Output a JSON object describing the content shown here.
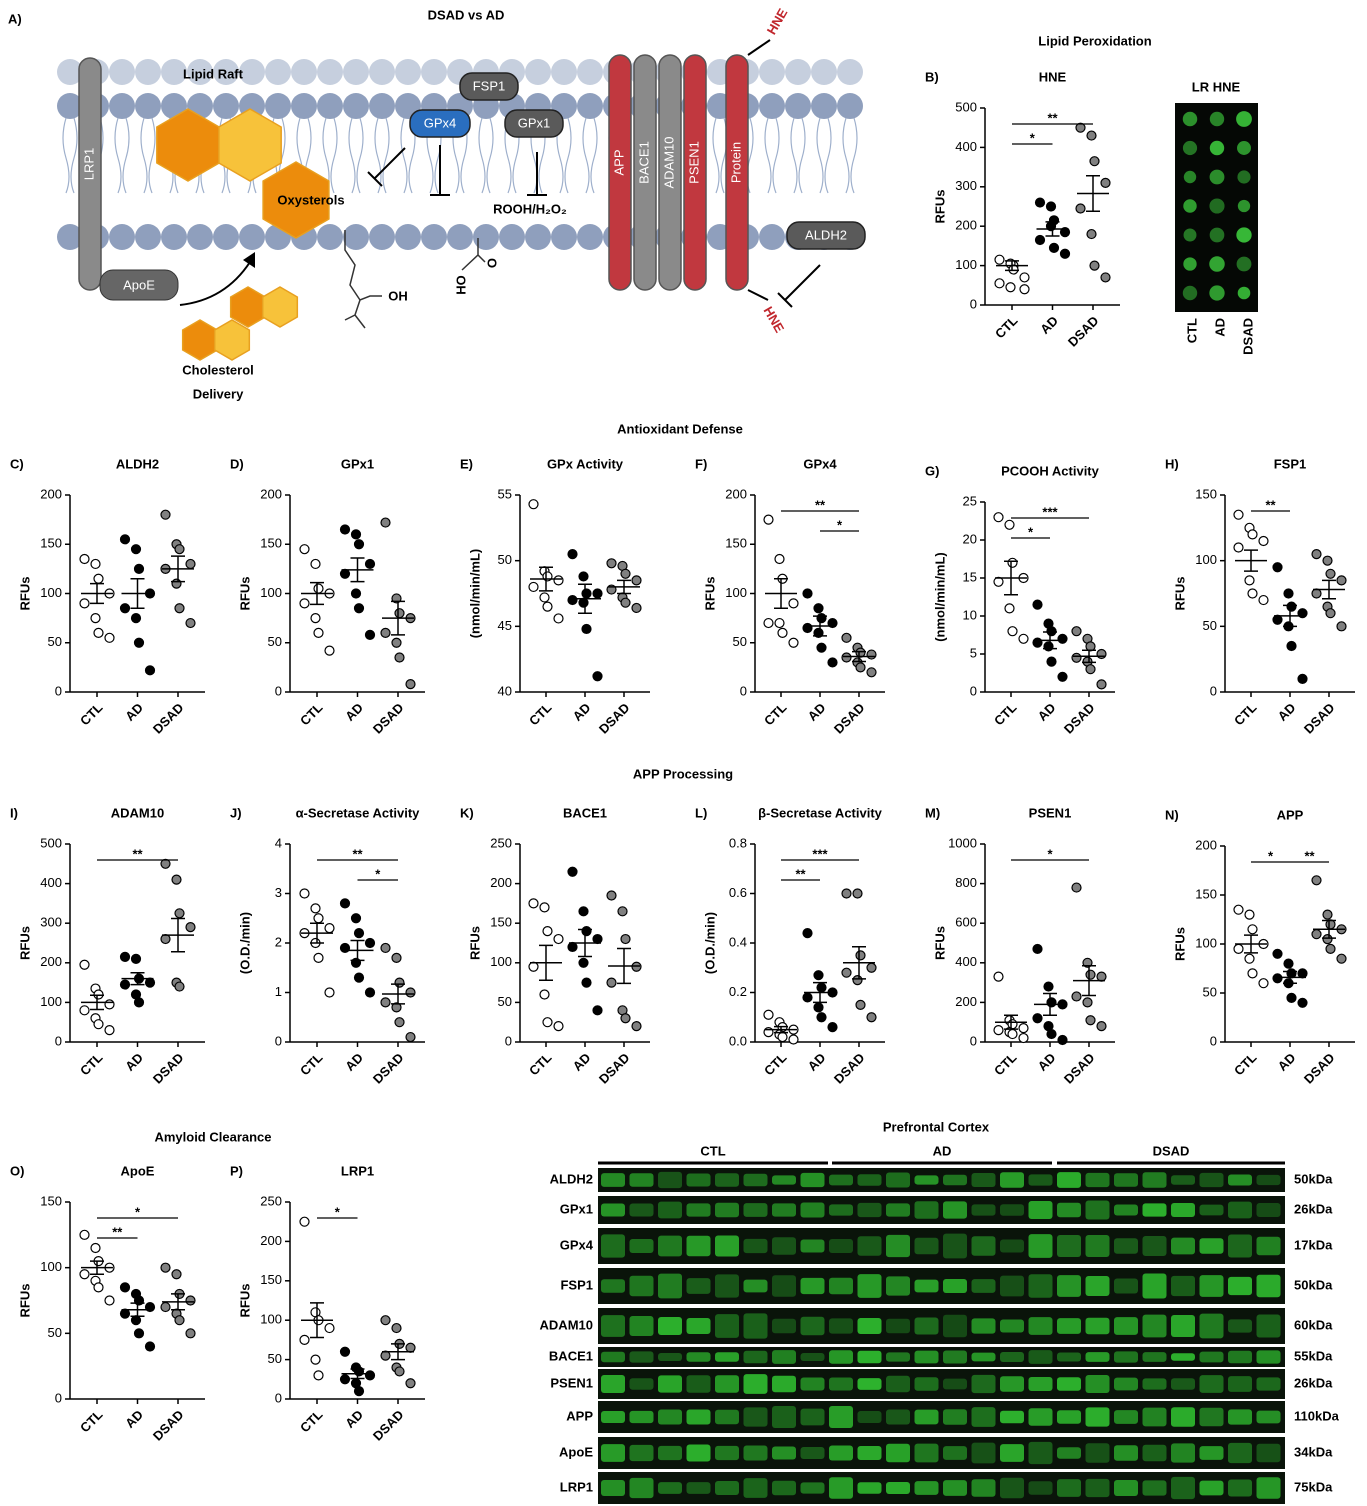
{
  "diagram": {
    "panel": "A)",
    "title": "DSAD vs AD",
    "lipid_raft": "Lipid Raft",
    "lrp1": "LRP1",
    "apoe": "ApoE",
    "oxysterols": "Oxysterols",
    "fsp1": "FSP1",
    "gpx4": "GPx4",
    "gpx1": "GPx1",
    "rooh": "ROOH/H₂O₂",
    "oh": "OH",
    "ho": "HO",
    "o": "O",
    "delivery": [
      "Cholesterol",
      "Delivery"
    ],
    "app": "APP",
    "bace1": "BACE1",
    "adam10": "ADAM10",
    "psen1": "PSEN1",
    "protein": "Protein",
    "hne": [
      "HNE",
      "HNE"
    ],
    "aldh2": "ALDH2"
  },
  "sections": [
    "Lipid Peroxidation",
    "Antioxidant Defense",
    "APP Processing",
    "Amyloid Clearance"
  ],
  "dot_blot": {
    "title": "LR HNE",
    "lanes": [
      "CTL",
      "AD",
      "DSAD"
    ]
  },
  "chart_data": [
    {
      "type": "dot",
      "panel": "B)",
      "title": "HNE",
      "ylabel": "RFUs",
      "categories": [
        "CTL",
        "AD",
        "DSAD"
      ],
      "colors": [
        "#ffffff",
        "#000000",
        "#808080"
      ],
      "values": [
        [
          55,
          45,
          100,
          70,
          115,
          105,
          90,
          40
        ],
        [
          260,
          250,
          215,
          185,
          165,
          200,
          145,
          130
        ],
        [
          450,
          430,
          365,
          310,
          245,
          180,
          100,
          70
        ]
      ],
      "means": [
        100,
        193,
        283
      ],
      "sems": [
        12,
        18,
        45
      ],
      "ylim": [
        0,
        500
      ],
      "yticks": [
        0,
        100,
        200,
        300,
        400,
        500
      ],
      "significance": [
        {
          "groups": [
            "CTL",
            "DSAD"
          ],
          "label": "**"
        },
        {
          "groups": [
            "CTL",
            "AD"
          ],
          "label": "*"
        }
      ]
    },
    {
      "type": "dot",
      "panel": "C)",
      "title": "ALDH2",
      "ylabel": "RFUs",
      "categories": [
        "CTL",
        "AD",
        "DSAD"
      ],
      "colors": [
        "#ffffff",
        "#000000",
        "#808080"
      ],
      "values": [
        [
          135,
          130,
          115,
          100,
          90,
          75,
          60,
          55
        ],
        [
          155,
          145,
          125,
          100,
          85,
          75,
          50,
          22
        ],
        [
          180,
          150,
          145,
          130,
          125,
          110,
          85,
          70
        ]
      ],
      "means": [
        100,
        100,
        125
      ],
      "sems": [
        10,
        15,
        13
      ],
      "ylim": [
        0,
        200
      ],
      "yticks": [
        0,
        50,
        100,
        150,
        200
      ],
      "significance": []
    },
    {
      "type": "dot",
      "panel": "D)",
      "title": "GPx1",
      "ylabel": "RFUs",
      "categories": [
        "CTL",
        "AD",
        "DSAD"
      ],
      "colors": [
        "#ffffff",
        "#000000",
        "#808080"
      ],
      "values": [
        [
          145,
          130,
          105,
          100,
          90,
          75,
          60,
          42
        ],
        [
          165,
          160,
          150,
          130,
          120,
          100,
          85,
          58
        ],
        [
          172,
          95,
          80,
          75,
          60,
          50,
          35,
          8
        ]
      ],
      "means": [
        100,
        124,
        75
      ],
      "sems": [
        11,
        12,
        17
      ],
      "ylim": [
        0,
        200
      ],
      "yticks": [
        0,
        50,
        100,
        150,
        200
      ],
      "significance": []
    },
    {
      "type": "dot",
      "panel": "E)",
      "title": "GPx Activity",
      "ylabel": "(nmol/min/mL)",
      "categories": [
        "CTL",
        "AD",
        "DSAD"
      ],
      "colors": [
        "#ffffff",
        "#000000",
        "#808080"
      ],
      "values": [
        [
          54.3,
          49.2,
          48.8,
          48.5,
          48,
          47.2,
          46.5,
          45.6
        ],
        [
          50.5,
          48.8,
          47.5,
          47.5,
          47,
          46.8,
          44.8,
          41.2
        ],
        [
          49.8,
          49.6,
          49,
          48.5,
          47.8,
          47.2,
          46.8,
          46.4
        ]
      ],
      "means": [
        48.6,
        47.1,
        48
      ],
      "sems": [
        0.9,
        1.1,
        0.5
      ],
      "ylim": [
        40,
        55
      ],
      "yticks": [
        40,
        45,
        50,
        55
      ],
      "significance": []
    },
    {
      "type": "dot",
      "panel": "F)",
      "title": "GPx4",
      "ylabel": "RFUs",
      "categories": [
        "CTL",
        "AD",
        "DSAD"
      ],
      "colors": [
        "#ffffff",
        "#000000",
        "#808080"
      ],
      "values": [
        [
          175,
          135,
          115,
          90,
          70,
          70,
          60,
          50
        ],
        [
          100,
          85,
          75,
          70,
          65,
          60,
          45,
          30
        ],
        [
          55,
          45,
          40,
          38,
          35,
          30,
          25,
          20
        ]
      ],
      "means": [
        100,
        67,
        36
      ],
      "sems": [
        15,
        10,
        5
      ],
      "ylim": [
        0,
        200
      ],
      "yticks": [
        0,
        50,
        100,
        150,
        200
      ],
      "significance": [
        {
          "groups": [
            "CTL",
            "DSAD"
          ],
          "label": "**"
        },
        {
          "groups": [
            "AD",
            "DSAD"
          ],
          "label": "*"
        }
      ]
    },
    {
      "type": "dot",
      "panel": "G)",
      "title": "PCOOH Activity",
      "ylabel": "(nmol/min/mL)",
      "categories": [
        "CTL",
        "AD",
        "DSAD"
      ],
      "colors": [
        "#ffffff",
        "#000000",
        "#808080"
      ],
      "values": [
        [
          23,
          22,
          17,
          15,
          14.5,
          11,
          8,
          7
        ],
        [
          11.5,
          9,
          8,
          7,
          6.5,
          6,
          4,
          2
        ],
        [
          8,
          7,
          6,
          5,
          4.5,
          4,
          3,
          1
        ]
      ],
      "means": [
        15,
        6.8,
        4.7
      ],
      "sems": [
        2.2,
        1.1,
        0.8
      ],
      "ylim": [
        0,
        25
      ],
      "yticks": [
        0,
        5,
        10,
        15,
        20,
        25
      ],
      "significance": [
        {
          "groups": [
            "CTL",
            "DSAD"
          ],
          "label": "***"
        },
        {
          "groups": [
            "CTL",
            "AD"
          ],
          "label": "*"
        }
      ]
    },
    {
      "type": "dot",
      "panel": "H)",
      "title": "FSP1",
      "ylabel": "RFUs",
      "categories": [
        "CTL",
        "AD",
        "DSAD"
      ],
      "colors": [
        "#ffffff",
        "#000000",
        "#808080"
      ],
      "values": [
        [
          135,
          125,
          120,
          115,
          110,
          85,
          75,
          70
        ],
        [
          95,
          75,
          65,
          60,
          55,
          50,
          35,
          10
        ],
        [
          105,
          100,
          90,
          85,
          75,
          65,
          60,
          50
        ]
      ],
      "means": [
        100,
        58,
        78
      ],
      "sems": [
        8,
        8,
        7
      ],
      "ylim": [
        0,
        150
      ],
      "yticks": [
        0,
        50,
        100,
        150
      ],
      "significance": [
        {
          "groups": [
            "CTL",
            "AD"
          ],
          "label": "**"
        }
      ]
    },
    {
      "type": "dot",
      "panel": "I)",
      "title": "ADAM10",
      "ylabel": "RFUs",
      "categories": [
        "CTL",
        "AD",
        "DSAD"
      ],
      "colors": [
        "#ffffff",
        "#000000",
        "#808080"
      ],
      "values": [
        [
          195,
          135,
          120,
          95,
          80,
          60,
          45,
          30
        ],
        [
          215,
          210,
          160,
          150,
          145,
          120,
          100
        ],
        [
          450,
          410,
          325,
          290,
          260,
          150,
          140
        ]
      ],
      "means": [
        100,
        160,
        270
      ],
      "sems": [
        18,
        15,
        42
      ],
      "ylim": [
        0,
        500
      ],
      "yticks": [
        0,
        100,
        200,
        300,
        400,
        500
      ],
      "significance": [
        {
          "groups": [
            "CTL",
            "DSAD"
          ],
          "label": "**"
        }
      ]
    },
    {
      "type": "dot",
      "panel": "J)",
      "title": "α-Secretase Activity",
      "ylabel": "(O.D./min)",
      "categories": [
        "CTL",
        "AD",
        "DSAD"
      ],
      "colors": [
        "#ffffff",
        "#000000",
        "#808080"
      ],
      "values": [
        [
          3.0,
          2.7,
          2.5,
          2.3,
          2.2,
          2.0,
          1.7,
          1.0
        ],
        [
          2.8,
          2.5,
          2.2,
          2.0,
          1.9,
          1.6,
          1.3,
          1.0
        ],
        [
          1.9,
          1.7,
          1.2,
          1.0,
          0.8,
          0.7,
          0.4,
          0.1
        ]
      ],
      "means": [
        2.2,
        1.85,
        0.97
      ],
      "sems": [
        0.2,
        0.2,
        0.2
      ],
      "ylim": [
        0,
        4
      ],
      "yticks": [
        0,
        1,
        2,
        3,
        4
      ],
      "significance": [
        {
          "groups": [
            "CTL",
            "DSAD"
          ],
          "label": "**"
        },
        {
          "groups": [
            "AD",
            "DSAD"
          ],
          "label": "*"
        }
      ]
    },
    {
      "type": "dot",
      "panel": "K)",
      "title": "BACE1",
      "ylabel": "RFUs",
      "categories": [
        "CTL",
        "AD",
        "DSAD"
      ],
      "colors": [
        "#ffffff",
        "#000000",
        "#808080"
      ],
      "values": [
        [
          175,
          170,
          140,
          130,
          95,
          60,
          25,
          20
        ],
        [
          215,
          165,
          140,
          130,
          120,
          100,
          75,
          40
        ],
        [
          185,
          165,
          130,
          95,
          75,
          40,
          30,
          20
        ]
      ],
      "means": [
        100,
        125,
        96
      ],
      "sems": [
        22,
        17,
        22
      ],
      "ylim": [
        0,
        250
      ],
      "yticks": [
        0,
        50,
        100,
        150,
        200,
        250
      ],
      "significance": []
    },
    {
      "type": "dot",
      "panel": "L)",
      "title": "β-Secretase Activity",
      "ylabel": "(O.D./min)",
      "categories": [
        "CTL",
        "AD",
        "DSAD"
      ],
      "colors": [
        "#ffffff",
        "#000000",
        "#808080"
      ],
      "values": [
        [
          0.11,
          0.08,
          0.06,
          0.05,
          0.04,
          0.03,
          0.02,
          0.01
        ],
        [
          0.44,
          0.27,
          0.22,
          0.2,
          0.18,
          0.14,
          0.1,
          0.06
        ],
        [
          0.6,
          0.6,
          0.35,
          0.3,
          0.28,
          0.25,
          0.15,
          0.1
        ]
      ],
      "means": [
        0.05,
        0.2,
        0.32
      ],
      "sems": [
        0.012,
        0.04,
        0.065
      ],
      "ylim": [
        0,
        0.8
      ],
      "yticks": [
        {
          "value": 0,
          "label": "0.0"
        },
        0.2,
        0.4,
        0.6,
        0.8
      ],
      "significance": [
        {
          "groups": [
            "CTL",
            "DSAD"
          ],
          "label": "***"
        },
        {
          "groups": [
            "CTL",
            "AD"
          ],
          "label": "**"
        }
      ]
    },
    {
      "type": "dot",
      "panel": "M)",
      "title": "PSEN1",
      "ylabel": "RFUs",
      "categories": [
        "CTL",
        "AD",
        "DSAD"
      ],
      "colors": [
        "#ffffff",
        "#000000",
        "#808080"
      ],
      "values": [
        [
          330,
          110,
          90,
          70,
          60,
          50,
          40,
          20
        ],
        [
          470,
          280,
          200,
          190,
          120,
          80,
          40,
          10
        ],
        [
          780,
          400,
          340,
          330,
          230,
          200,
          110,
          80
        ]
      ],
      "means": [
        100,
        190,
        310
      ],
      "sems": [
        35,
        55,
        75
      ],
      "ylim": [
        0,
        1000
      ],
      "yticks": [
        0,
        200,
        400,
        600,
        800,
        1000
      ],
      "significance": [
        {
          "groups": [
            "CTL",
            "DSAD"
          ],
          "label": "*"
        }
      ]
    },
    {
      "type": "dot",
      "panel": "N)",
      "title": "APP",
      "ylabel": "RFUs",
      "categories": [
        "CTL",
        "AD",
        "DSAD"
      ],
      "colors": [
        "#ffffff",
        "#000000",
        "#808080"
      ],
      "values": [
        [
          135,
          130,
          115,
          100,
          95,
          85,
          70,
          60
        ],
        [
          90,
          80,
          70,
          70,
          65,
          60,
          45,
          40
        ],
        [
          165,
          130,
          120,
          115,
          110,
          105,
          95,
          85
        ]
      ],
      "means": [
        100,
        66,
        115
      ],
      "sems": [
        9,
        6,
        9
      ],
      "ylim": [
        0,
        200
      ],
      "yticks": [
        0,
        50,
        100,
        150,
        200
      ],
      "significance": [
        {
          "groups": [
            "CTL",
            "AD"
          ],
          "label": "*"
        },
        {
          "groups": [
            "AD",
            "DSAD"
          ],
          "label": "**"
        }
      ]
    },
    {
      "type": "dot",
      "panel": "O)",
      "title": "ApoE",
      "ylabel": "RFUs",
      "categories": [
        "CTL",
        "AD",
        "DSAD"
      ],
      "colors": [
        "#ffffff",
        "#000000",
        "#808080"
      ],
      "values": [
        [
          125,
          115,
          105,
          100,
          95,
          90,
          85,
          75
        ],
        [
          85,
          80,
          75,
          70,
          65,
          60,
          50,
          40
        ],
        [
          100,
          95,
          80,
          75,
          70,
          65,
          60,
          50
        ]
      ],
      "means": [
        100,
        68,
        74
      ],
      "sems": [
        5,
        5,
        6
      ],
      "ylim": [
        0,
        150
      ],
      "yticks": [
        0,
        50,
        100,
        150
      ],
      "significance": [
        {
          "groups": [
            "CTL",
            "DSAD"
          ],
          "label": "*"
        },
        {
          "groups": [
            "CTL",
            "AD"
          ],
          "label": "**"
        }
      ]
    },
    {
      "type": "dot",
      "panel": "P)",
      "title": "LRP1",
      "ylabel": "RFUs",
      "categories": [
        "CTL",
        "AD",
        "DSAD"
      ],
      "colors": [
        "#ffffff",
        "#000000",
        "#808080"
      ],
      "values": [
        [
          225,
          110,
          100,
          90,
          75,
          50,
          30
        ],
        [
          60,
          40,
          35,
          30,
          25,
          20,
          10
        ],
        [
          100,
          90,
          70,
          65,
          55,
          40,
          35,
          20
        ]
      ],
      "means": [
        100,
        32,
        60
      ],
      "sems": [
        22,
        6,
        10
      ],
      "ylim": [
        0,
        250
      ],
      "yticks": [
        0,
        50,
        100,
        150,
        200,
        250
      ],
      "significance": [
        {
          "groups": [
            "CTL",
            "AD"
          ],
          "label": "*"
        }
      ]
    }
  ],
  "western_blot": {
    "title": "Prefrontal Cortex",
    "groups": [
      "CTL",
      "AD",
      "DSAD"
    ],
    "rows": [
      {
        "protein": "ALDH2",
        "size": "50kDa"
      },
      {
        "protein": "GPx1",
        "size": "26kDa"
      },
      {
        "protein": "GPx4",
        "size": "17kDa"
      },
      {
        "protein": "FSP1",
        "size": "50kDa"
      },
      {
        "protein": "ADAM10",
        "size": "60kDa"
      },
      {
        "protein": "BACE1",
        "size": "55kDa"
      },
      {
        "protein": "PSEN1",
        "size": "26kDa"
      },
      {
        "protein": "APP",
        "size": "110kDa"
      },
      {
        "protein": "ApoE",
        "size": "34kDa"
      },
      {
        "protein": "LRP1",
        "size": "75kDa"
      }
    ]
  }
}
